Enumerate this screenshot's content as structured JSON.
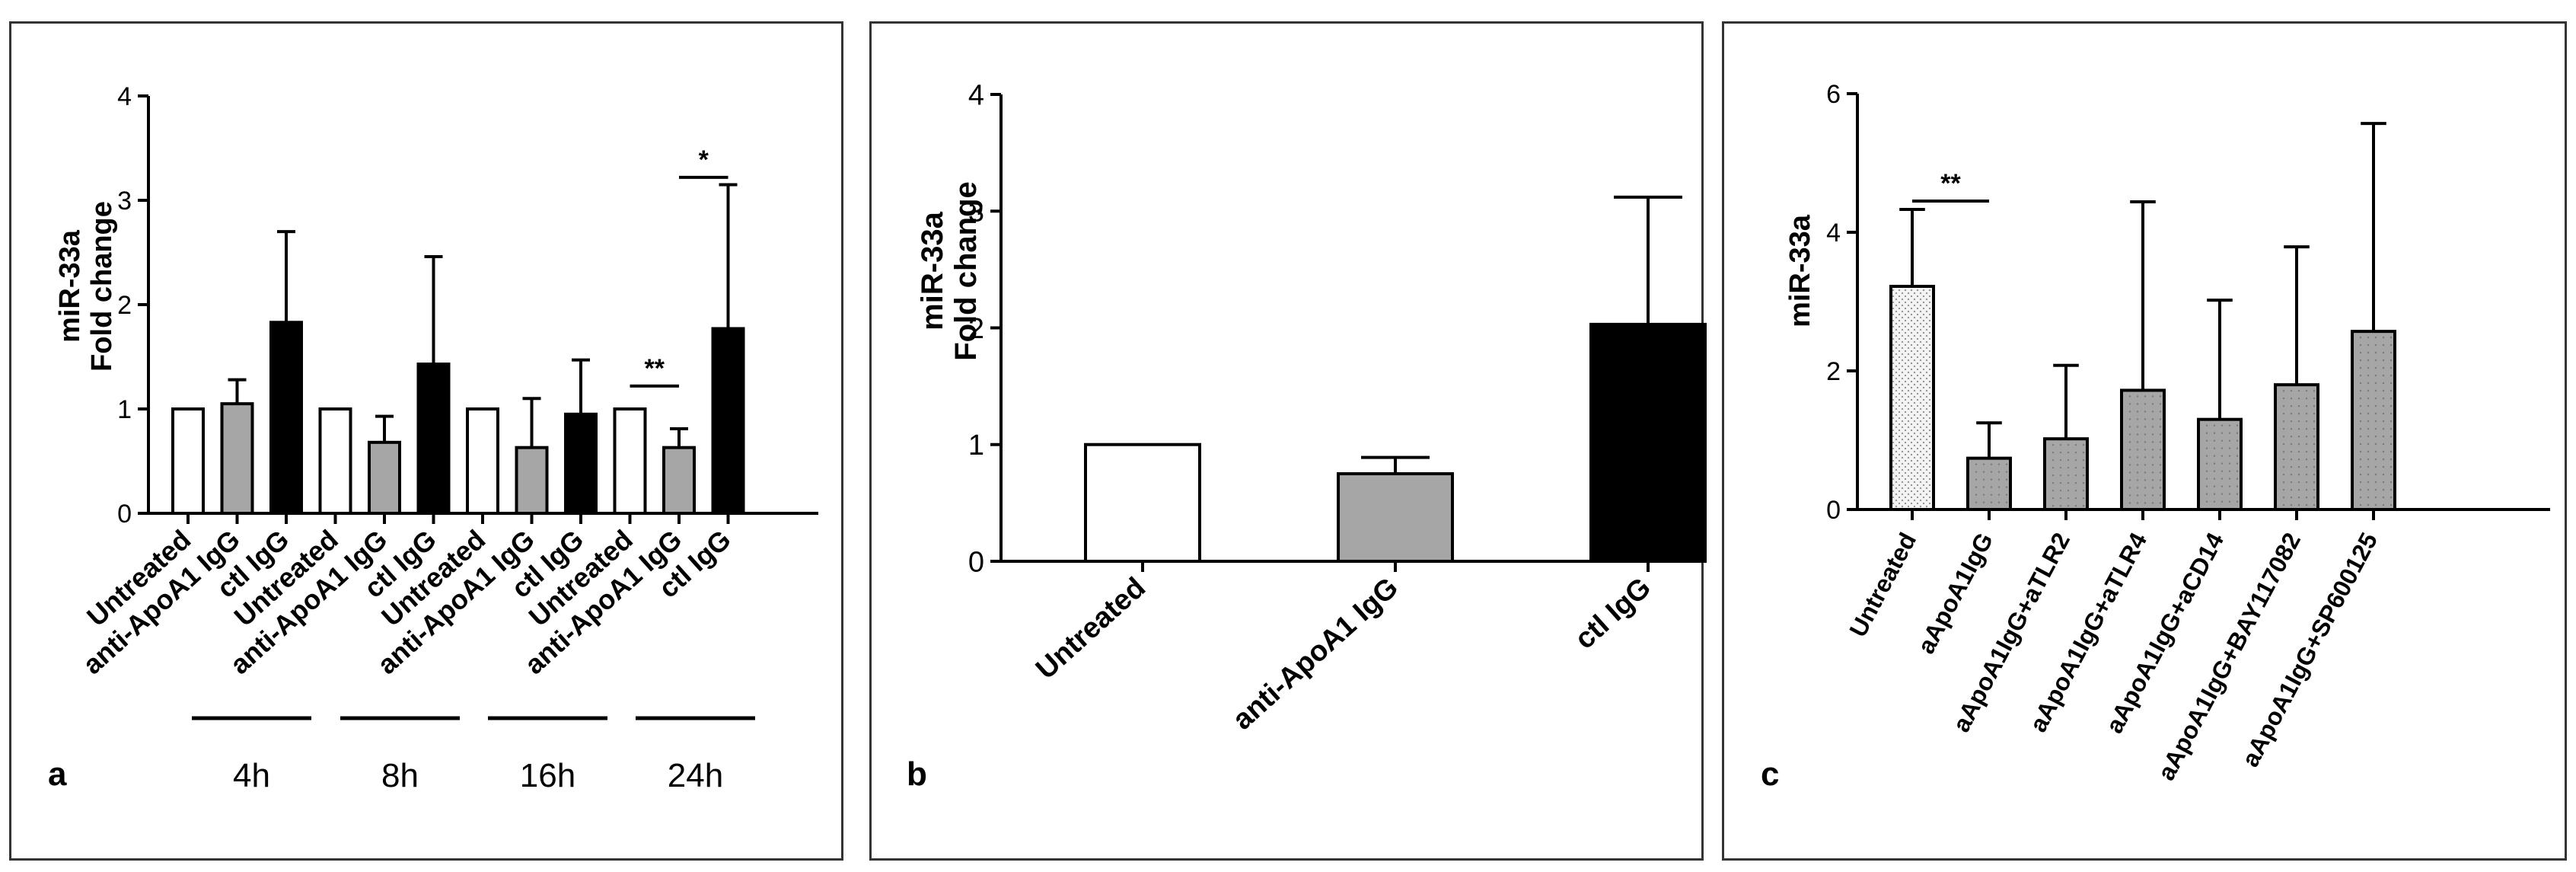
{
  "chart_data": [
    {
      "panel_letter": "a",
      "type": "bar",
      "ylabel": [
        "miR-33a",
        "Fold change"
      ],
      "ylim": [
        0,
        4
      ],
      "yticks": [
        "0",
        "1",
        "2",
        "3",
        "4"
      ],
      "categories": [
        "Untreated",
        "anti-ApoA1 IgG",
        "ctl IgG",
        "Untreated",
        "anti-ApoA1 IgG",
        "ctl IgG",
        "Untreated",
        "anti-ApoA1 IgG",
        "ctl IgG",
        "Untreated",
        "anti-ApoA1 IgG",
        "ctl IgG"
      ],
      "values": [
        1.0,
        1.05,
        1.83,
        1.0,
        0.68,
        1.43,
        1.0,
        0.63,
        0.95,
        1.0,
        0.63,
        1.77
      ],
      "errors": [
        0.0,
        0.23,
        0.87,
        0.0,
        0.25,
        1.03,
        0.0,
        0.47,
        0.52,
        0.0,
        0.18,
        1.38
      ],
      "fills": [
        "#ffffff",
        "#a6a6a6",
        "#000000",
        "#ffffff",
        "#a6a6a6",
        "#000000",
        "#ffffff",
        "#a6a6a6",
        "#000000",
        "#ffffff",
        "#a6a6a6",
        "#000000"
      ],
      "groups": [
        "4h",
        "8h",
        "16h",
        "24h"
      ],
      "significance": [
        {
          "label": "**",
          "from": 9,
          "to": 10,
          "y": 1.22
        },
        {
          "label": "*",
          "from": 10,
          "to": 11,
          "y": 3.22
        }
      ]
    },
    {
      "panel_letter": "b",
      "type": "bar",
      "ylabel": [
        "miR-33a",
        "Fold change"
      ],
      "ylim": [
        0,
        4
      ],
      "yticks": [
        "0",
        "1",
        "2",
        "3",
        "4"
      ],
      "categories": [
        "Untreated",
        "anti-ApoA1 IgG",
        "ctl IgG"
      ],
      "values": [
        1.0,
        0.75,
        2.03
      ],
      "errors": [
        0.0,
        0.14,
        1.09
      ],
      "fills": [
        "#ffffff",
        "#a6a6a6",
        "#000000"
      ]
    },
    {
      "panel_letter": "c",
      "type": "bar",
      "ylabel": [
        "miR-33a"
      ],
      "ylim": [
        0,
        6
      ],
      "yticks": [
        "0",
        "2",
        "4",
        "6"
      ],
      "categories": [
        "Untreated",
        "aApoA1IgG",
        "aApoA1IgG+aTLR2",
        "aApoA1IgG+aTLR4",
        "aApoA1IgG+aCD14",
        "aApoA1IgG+BAY117082",
        "aApoA1IgG+SP600125"
      ],
      "values": [
        3.22,
        0.74,
        1.02,
        1.72,
        1.3,
        1.8,
        2.57
      ],
      "errors": [
        1.11,
        0.51,
        1.06,
        2.72,
        1.72,
        1.99,
        3.0
      ],
      "fills": [
        "#f2f2f2",
        "#a6a6a6",
        "#a6a6a6",
        "#a6a6a6",
        "#a6a6a6",
        "#a6a6a6",
        "#a6a6a6"
      ],
      "significance": [
        {
          "label": "**",
          "from": 0,
          "to": 1,
          "y": 4.45
        }
      ]
    }
  ]
}
